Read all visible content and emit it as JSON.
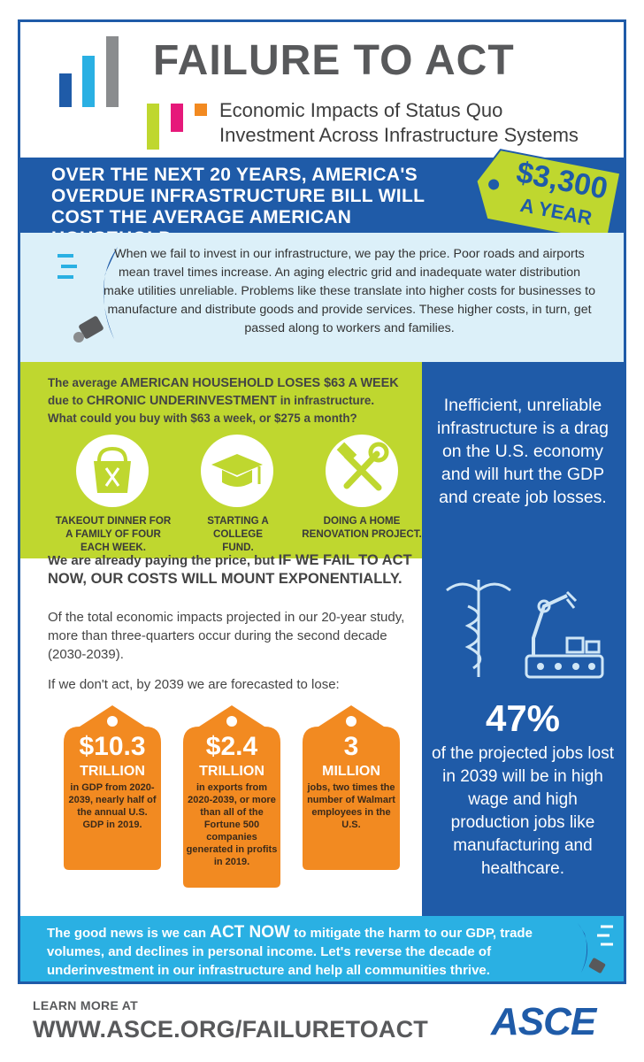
{
  "header": {
    "title": "FAILURE TO ACT",
    "subtitle_line1": "Economic Impacts of Status Quo",
    "subtitle_line2": "Investment Across Infrastructure Systems"
  },
  "banner": {
    "line1": "OVER THE NEXT 20 YEARS, AMERICA'S",
    "line2": "OVERDUE INFRASTRUCTURE BILL WILL",
    "line3": "COST THE AVERAGE AMERICAN HOUSEHOLD",
    "price_amount": "$3,300",
    "price_period": "A YEAR"
  },
  "intro": {
    "text": "When we fail to invest in our infrastructure, we pay the price. Poor roads and airports mean travel times increase. An aging electric grid and inadequate water distribution make utilities unreliable. Problems like these translate into higher costs for businesses to manufacture and distribute goods and provide services. These higher costs, in turn, get passed along to workers and families."
  },
  "household": {
    "line1_pre": "The average ",
    "line1_em": "AMERICAN HOUSEHOLD LOSES $63 A WEEK",
    "line2_pre": "due to ",
    "line2_em": "CHRONIC UNDERINVESTMENT",
    "line2_post": " in infrastructure.",
    "line3": "What could you buy with $63 a week, or $275 a month?",
    "items": [
      {
        "icon": "takeout-bag-icon",
        "caption": "TAKEOUT DINNER FOR A FAMILY OF FOUR EACH WEEK."
      },
      {
        "icon": "graduation-cap-icon",
        "caption": "STARTING A COLLEGE FUND."
      },
      {
        "icon": "tools-icon",
        "caption": "DOING A HOME RENOVATION PROJECT."
      }
    ]
  },
  "right_panel": {
    "statement": "Inefficient, unreliable infrastructure is a drag on the U.S. economy and will hurt the GDP and create job losses.",
    "stat_value": "47%",
    "stat_text": "of the projected jobs lost in 2039 will be in high wage and high production jobs like manufacturing and healthcare."
  },
  "middle": {
    "lead_pre": "We are already paying the price, but ",
    "lead_em": "IF WE FAIL TO ACT NOW, OUR COSTS WILL MOUNT EXPONENTIALLY.",
    "body": "Of the total economic impacts projected in our 20-year study, more than three-quarters occur during the second decade (2030-2039).",
    "forecast": "If we don't act, by 2039 we are forecasted to lose:"
  },
  "tags": [
    {
      "value": "$10.3",
      "unit": "TRILLION",
      "desc": "in GDP from 2020-2039, nearly half of the annual U.S. GDP in 2019."
    },
    {
      "value": "$2.4",
      "unit": "TRILLION",
      "desc": "in exports from 2020-2039, or more than all of the Fortune 500 companies generated in profits in 2019."
    },
    {
      "value": "3",
      "unit": "MILLION",
      "desc": "jobs, two times the number of Walmart employees in the U.S."
    }
  ],
  "good_news": {
    "pre": "The good news is we can ",
    "em": "ACT NOW",
    "post": " to mitigate the harm to our GDP, trade volumes, and declines in personal income. Let's reverse the decade of underinvestment in our infrastructure and help all communities thrive."
  },
  "footer": {
    "learn": "LEARN MORE AT",
    "url": "WWW.ASCE.ORG/FAILURETOACT",
    "logo": "ASCE"
  },
  "colors": {
    "brand_blue": "#1f5ba8",
    "light_blue": "#dcf0f9",
    "lime": "#bfd72f",
    "orange": "#f28a21",
    "cyan": "#2ab0e3",
    "gray": "#58595b"
  }
}
